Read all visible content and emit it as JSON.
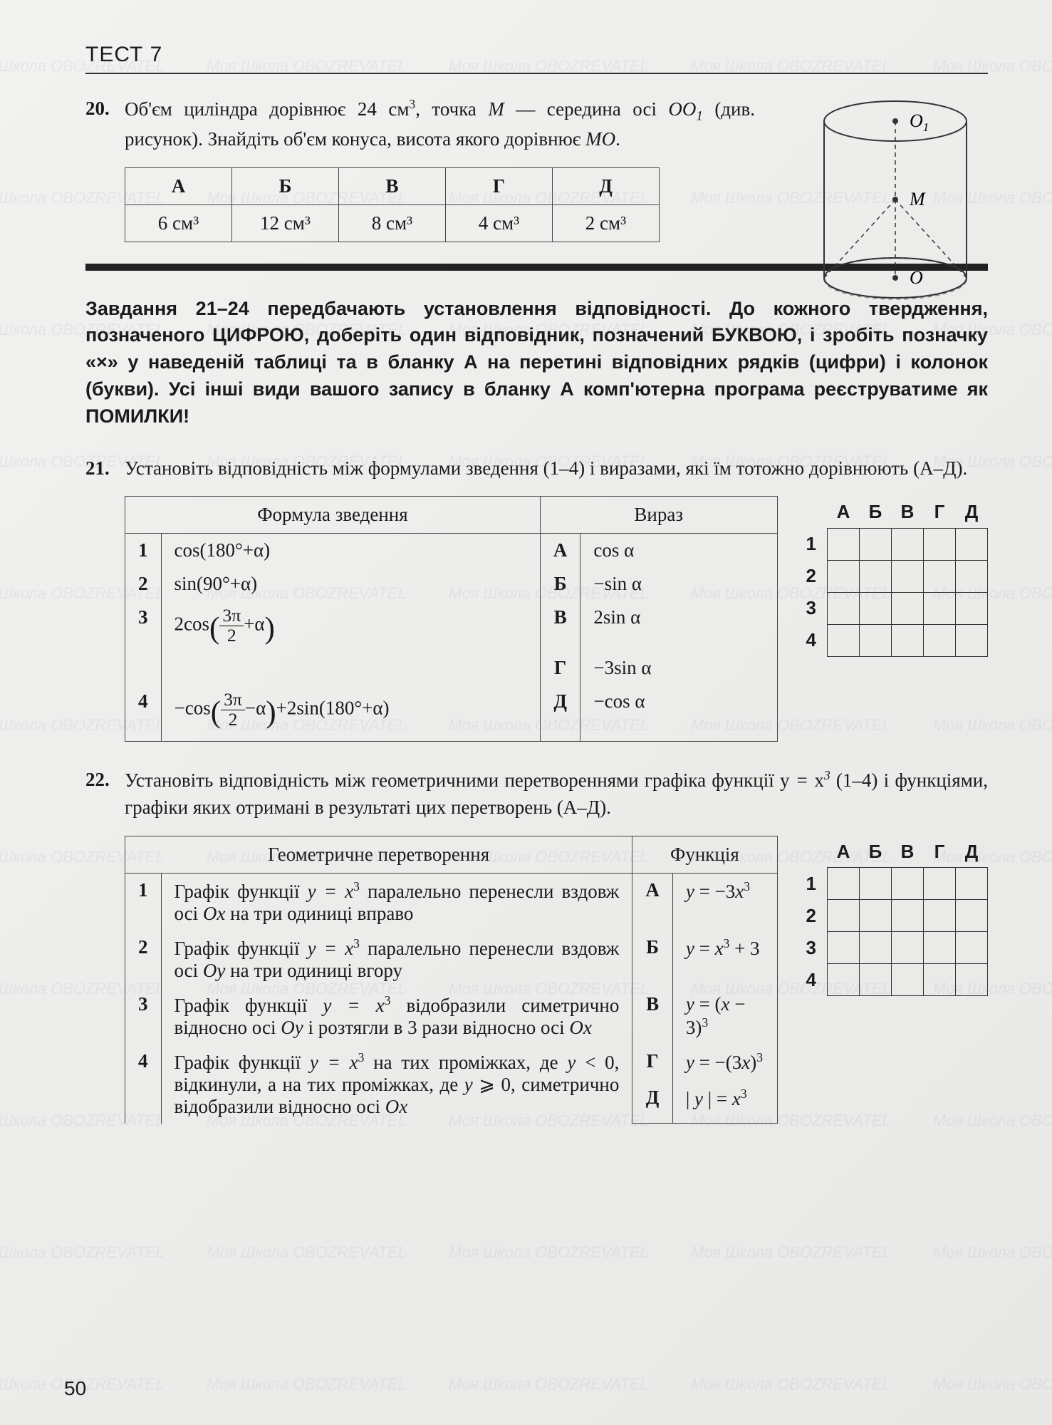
{
  "header": "ТЕСТ 7",
  "page_number": "50",
  "watermark_text": "Моя Школа   OBOZREVATEL",
  "watermark_color": "rgba(120,160,190,0.12)",
  "colors": {
    "page_bg": "#ececea",
    "text": "#1a1a1a",
    "rule": "#222222",
    "border": "#444444"
  },
  "q20": {
    "num": "20.",
    "text_before": "Об'єм циліндра дорівнює 24 см",
    "text_mid": ", точка ",
    "text_m": "M",
    "text_mid2": " — середина осі ",
    "oo1": "OO",
    "text_after": " (див. рисунок). Знайдіть об'єм конуса, висота якого дорівнює ",
    "mo": "MO",
    "period": ".",
    "headers": [
      "А",
      "Б",
      "В",
      "Г",
      "Д"
    ],
    "values": [
      "6 см³",
      "12 см³",
      "8 см³",
      "4 см³",
      "2 см³"
    ]
  },
  "cylinder": {
    "label_O1": "O₁",
    "label_M": "M",
    "label_O": "O"
  },
  "instructions": "Завдання 21–24 передбачають установлення відповідності. До кожного твердження, позначеного ЦИФРОЮ, доберіть один відповідник, позначений БУКВОЮ, і зробіть позначку «×» у наведеній таблиці та в бланку А на перетині відповідних рядків (цифри) і колонок (букви). Усі інші види вашого запису в бланку А комп'ютерна програма реєструватиме як ПОМИЛКИ!",
  "q21": {
    "num": "21.",
    "text": "Установіть відповідність між формулами зведення (1–4) і виразами, які їм тотожно дорівнюють (А–Д).",
    "col1_header": "Формула зведення",
    "col2_header": "Вираз",
    "left": [
      {
        "n": "1",
        "html": "cos(180°+α)"
      },
      {
        "n": "2",
        "html": "sin(90°+α)"
      },
      {
        "n": "3",
        "html": "2cos(3π/2 + α)"
      },
      {
        "n": "4",
        "html": "−cos(3π/2 − α)+2sin(180°+α)"
      }
    ],
    "right": [
      {
        "l": "А",
        "html": "cos α"
      },
      {
        "l": "Б",
        "html": "−sin α"
      },
      {
        "l": "В",
        "html": "2sin α"
      },
      {
        "l": "Г",
        "html": "−3sin α"
      },
      {
        "l": "Д",
        "html": "−cos α"
      }
    ]
  },
  "q22": {
    "num": "22.",
    "text_pre": "Установіть відповідність між геометричними перетвореннями графіка функції ",
    "fn": "y = x³",
    "text_post": " (1–4) і функціями, графіки яких отримані в результаті цих перетворень (А–Д).",
    "col1_header": "Геометричне перетворення",
    "col2_header": "Функція",
    "left": [
      {
        "n": "1",
        "t": "Графік функції y = x³ паралельно перенесли вздовж осі Ox на три одиниці вправо"
      },
      {
        "n": "2",
        "t": "Графік функції y = x³ паралельно перенесли вздовж осі Oy на три одиниці вгору"
      },
      {
        "n": "3",
        "t": "Графік функції y = x³ відобразили симетрично відносно осі Oy і розтягли в 3 рази відносно осі Ox"
      },
      {
        "n": "4",
        "t": "Графік функції y = x³ на тих проміжках, де y < 0, відкинули, а на тих проміжках, де y ⩾ 0, симетрично відобразили відносно осі Ox"
      }
    ],
    "right": [
      {
        "l": "А",
        "html": "y = −3x³"
      },
      {
        "l": "Б",
        "html": "y = x³ + 3"
      },
      {
        "l": "В",
        "html": "y = (x − 3)³"
      },
      {
        "l": "Г",
        "html": "y = −(3x)³"
      },
      {
        "l": "Д",
        "html": "| y | = x³"
      }
    ]
  },
  "grid": {
    "cols": [
      "А",
      "Б",
      "В",
      "Г",
      "Д"
    ],
    "rows": [
      "1",
      "2",
      "3",
      "4"
    ]
  }
}
